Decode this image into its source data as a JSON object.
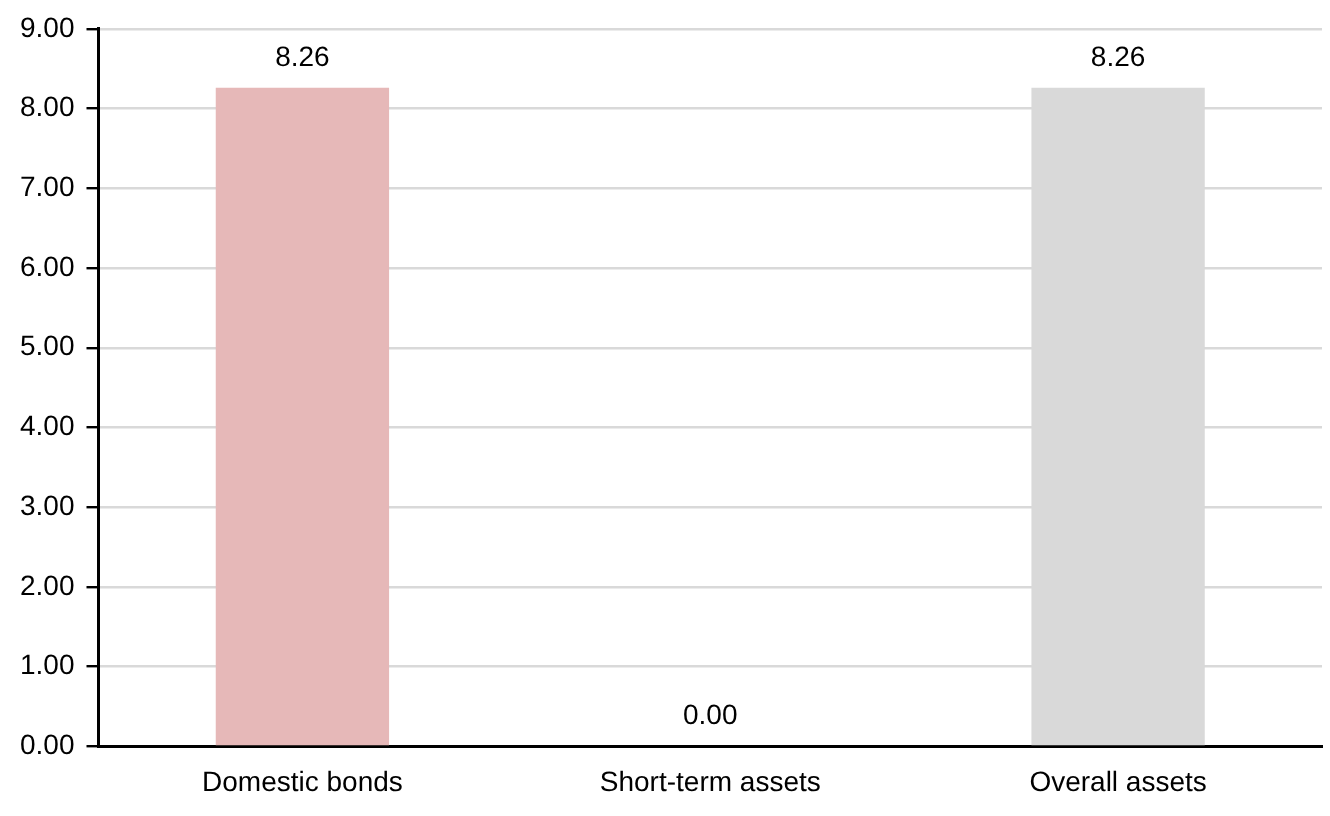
{
  "chart_data": {
    "type": "bar",
    "categories": [
      "Domestic bonds",
      "Short-term assets",
      "Overall assets"
    ],
    "values": [
      8.26,
      0,
      8.26
    ],
    "colors": [
      "#e6b8b8",
      "#e6b8b8",
      "#d9d9d9"
    ],
    "value_labels": [
      "8.26",
      "0.00",
      "8.26"
    ],
    "ylim": [
      0,
      9
    ],
    "yticks": [
      {
        "value": 0,
        "label": "0.00"
      },
      {
        "value": 1,
        "label": "1.00"
      },
      {
        "value": 2,
        "label": "2.00"
      },
      {
        "value": 3,
        "label": "3.00"
      },
      {
        "value": 4,
        "label": "4.00"
      },
      {
        "value": 5,
        "label": "5.00"
      },
      {
        "value": 6,
        "label": "6.00"
      },
      {
        "value": 7,
        "label": "7.00"
      },
      {
        "value": 8,
        "label": "8.00"
      },
      {
        "value": 9,
        "label": "9.00"
      }
    ],
    "grid": "y",
    "legend": false
  }
}
